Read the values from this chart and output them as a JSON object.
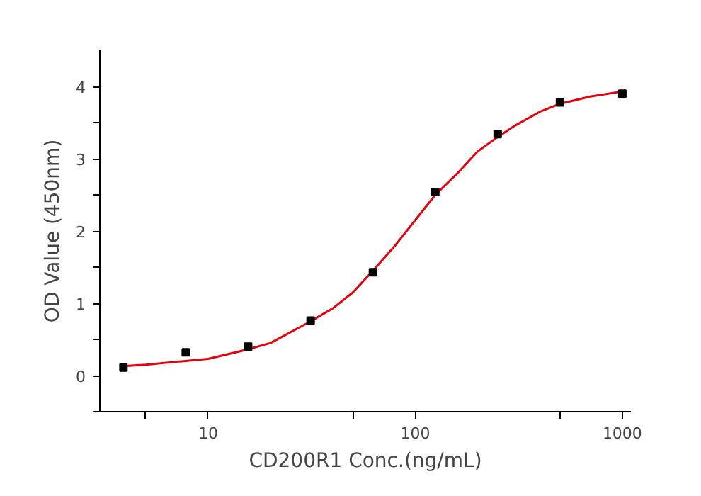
{
  "chart_data": {
    "type": "scatter",
    "xlabel": "CD200R1 Conc.(ng/mL)",
    "ylabel": "OD Value (450nm)",
    "log": "x",
    "grid": false,
    "xlim": [
      3,
      1100
    ],
    "ylim": [
      -0.5,
      4.5
    ],
    "xticks": [
      {
        "value": 5,
        "label": null
      },
      10,
      {
        "value": 50,
        "label": null
      },
      100,
      {
        "value": 500,
        "label": null
      },
      1000
    ],
    "yticks": [
      {
        "value": -0.5,
        "label": null
      },
      0,
      {
        "value": 0.5,
        "label": null
      },
      1,
      {
        "value": 1.5,
        "label": null
      },
      2,
      {
        "value": 2.5,
        "label": null
      },
      3,
      {
        "value": 3.5,
        "label": null
      },
      4
    ],
    "series": [
      {
        "marker": "square",
        "color": "#000000",
        "x": [
          3.9,
          7.8,
          15.6,
          31.25,
          62.5,
          125,
          250,
          500,
          1000
        ],
        "values": [
          0.11,
          0.32,
          0.4,
          0.76,
          1.43,
          2.54,
          3.34,
          3.78,
          3.9
        ]
      },
      {
        "type": "line",
        "line_style": "solid",
        "color": "#e8000b",
        "x": [
          3.9,
          5,
          7,
          10,
          15,
          20,
          31.25,
          40,
          50,
          62.5,
          80,
          100,
          125,
          160,
          200,
          250,
          300,
          400,
          500,
          700,
          1000
        ],
        "values": [
          0.13,
          0.15,
          0.19,
          0.23,
          0.35,
          0.45,
          0.75,
          0.93,
          1.15,
          1.45,
          1.8,
          2.15,
          2.5,
          2.8,
          3.1,
          3.3,
          3.45,
          3.65,
          3.76,
          3.86,
          3.93
        ]
      }
    ]
  }
}
